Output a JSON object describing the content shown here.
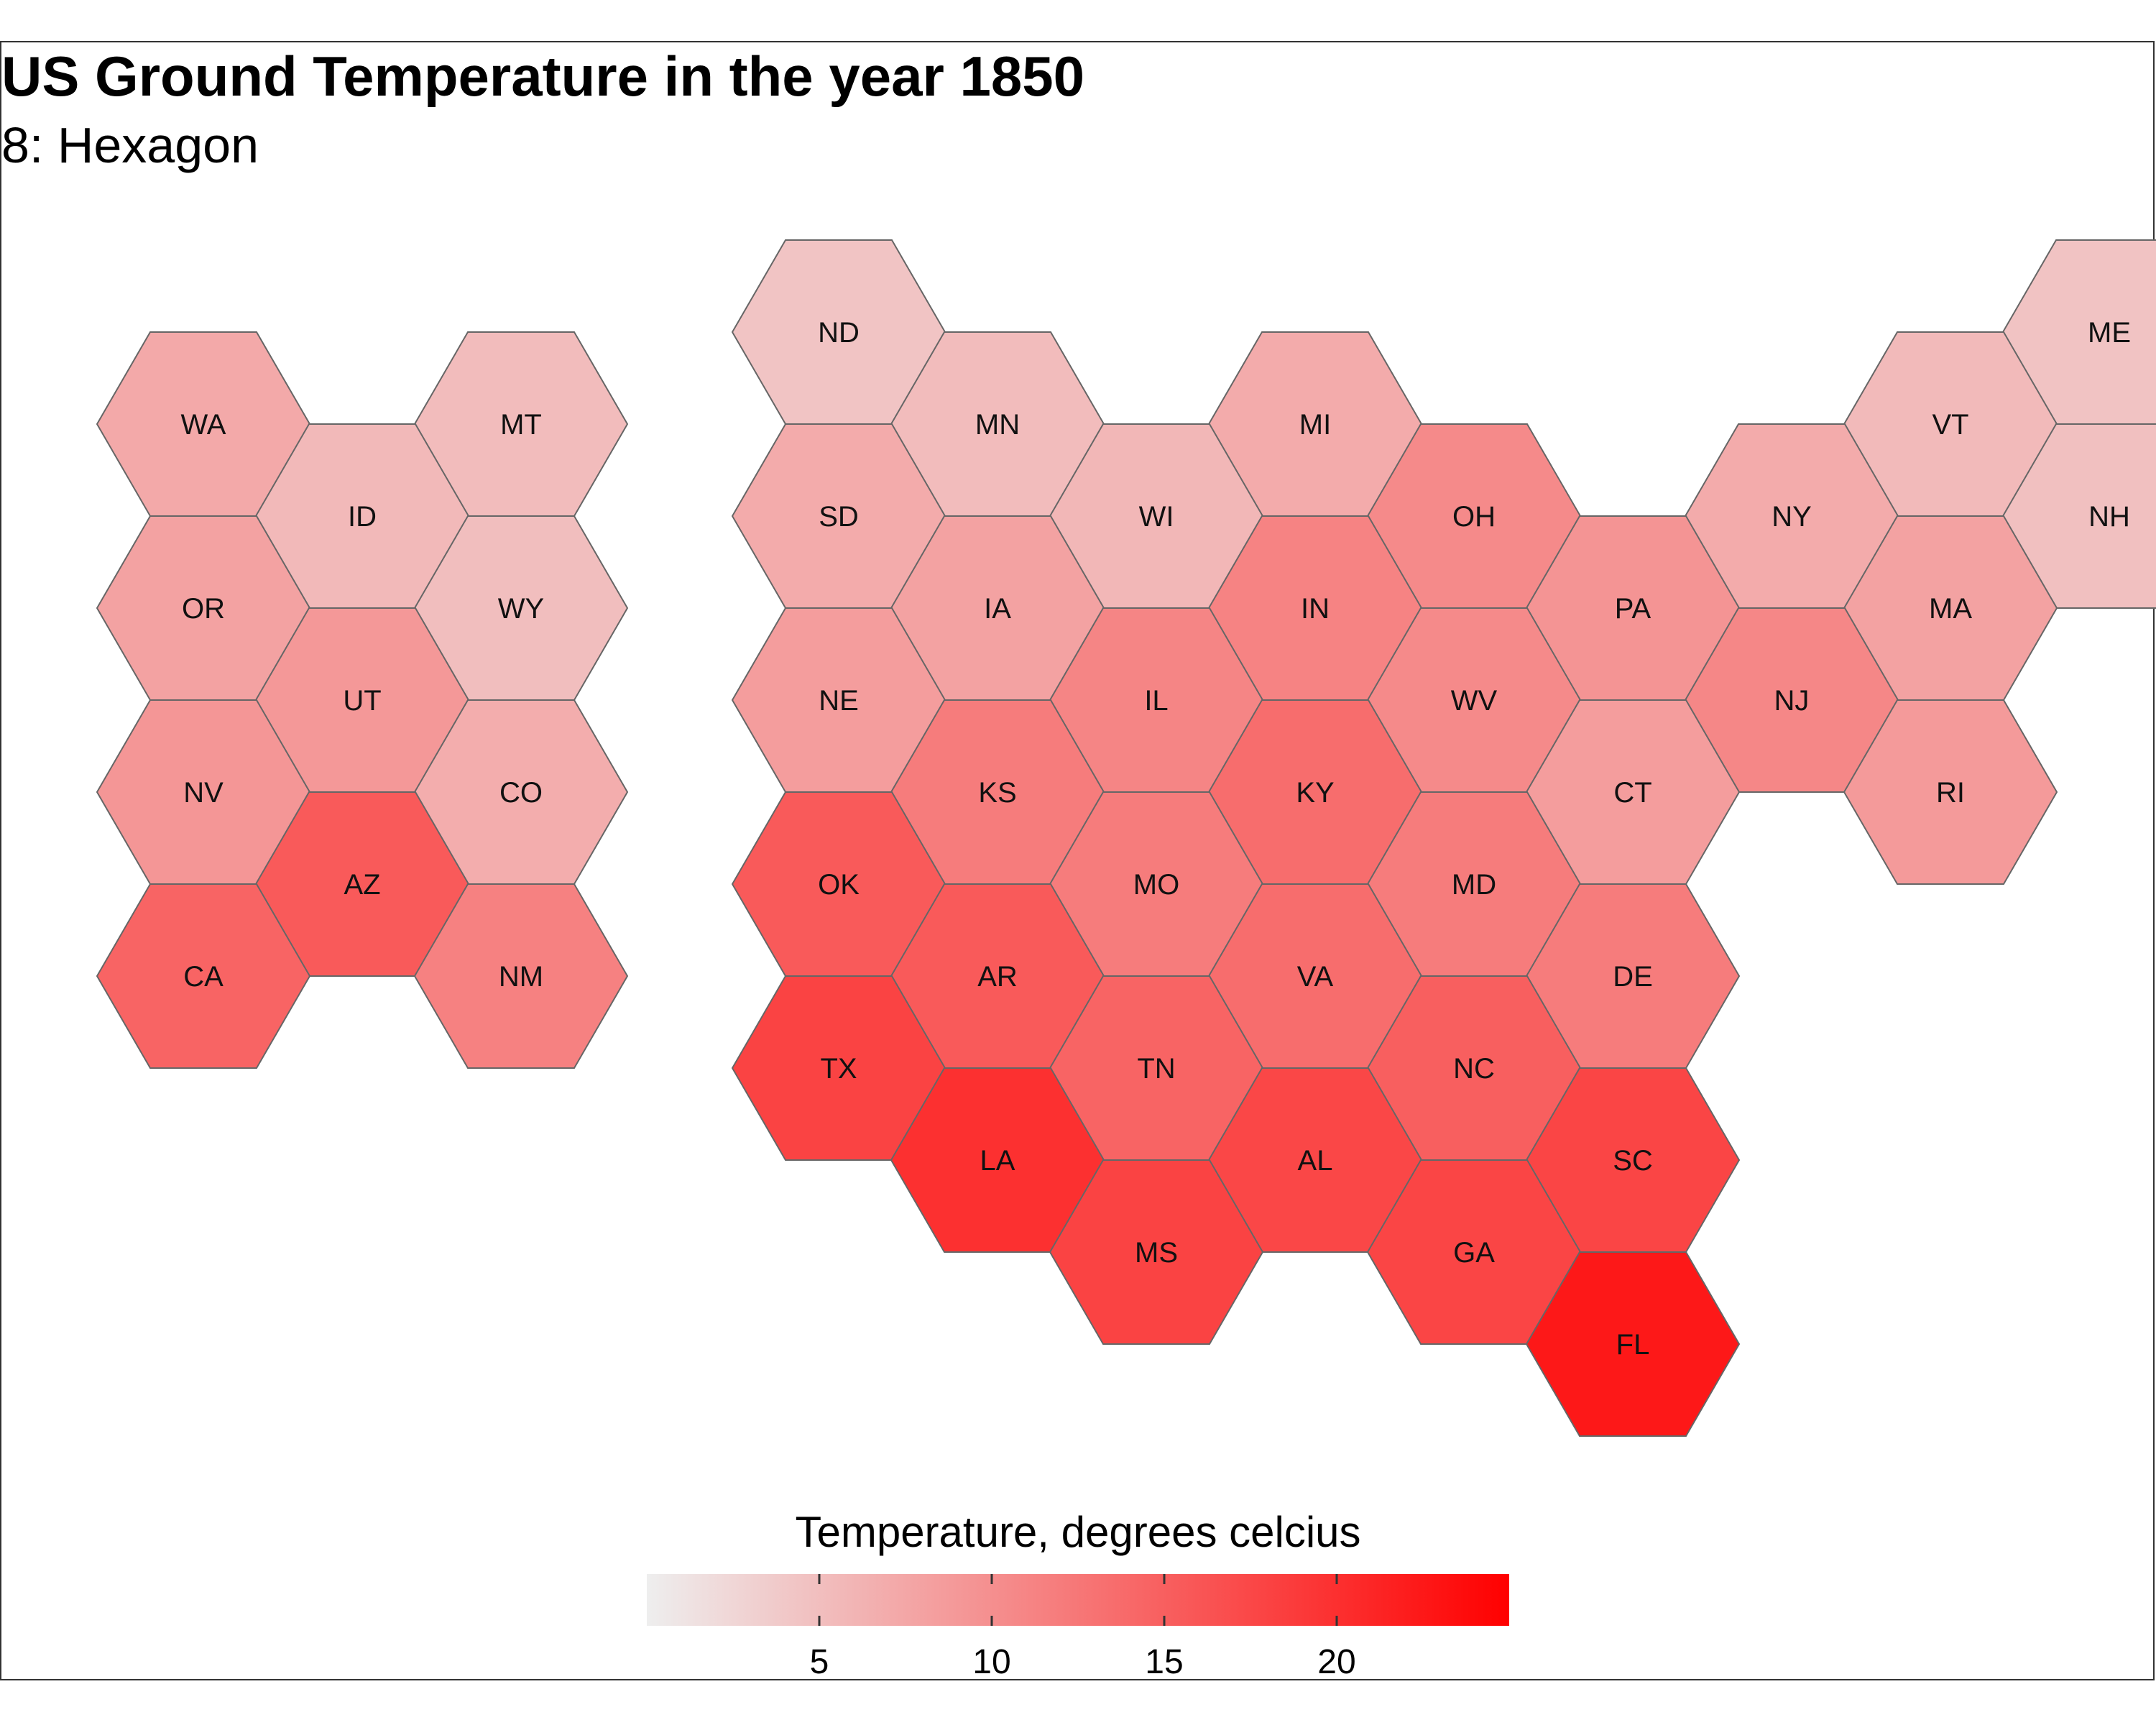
{
  "chart_data": {
    "type": "heatmap",
    "title": "US Ground Temperature in the year 1850",
    "subtitle": "8: Hexagon",
    "legend": {
      "title": "Temperature, degrees celcius",
      "ticks": [
        5,
        10,
        15,
        20
      ],
      "range": [
        0,
        25
      ],
      "placement": "bottom",
      "color_low": "#eeeeee",
      "color_high": "#ff0000"
    },
    "grid": false,
    "states": [
      {
        "abbr": "ME",
        "col": 12,
        "row": 0,
        "temp": 4.5
      },
      {
        "abbr": "ND",
        "col": 4,
        "row": 0,
        "temp": 4.4
      },
      {
        "abbr": "WA",
        "col": 0,
        "row": 1,
        "temp": 7.2
      },
      {
        "abbr": "MT",
        "col": 2,
        "row": 1,
        "temp": 5.3
      },
      {
        "abbr": "MN",
        "col": 5,
        "row": 1,
        "temp": 5.2
      },
      {
        "abbr": "MI",
        "col": 7,
        "row": 1,
        "temp": 7.0
      },
      {
        "abbr": "VT",
        "col": 11,
        "row": 1,
        "temp": 5.5
      },
      {
        "abbr": "ID",
        "col": 1,
        "row": 2,
        "temp": 5.6
      },
      {
        "abbr": "SD",
        "col": 4,
        "row": 2,
        "temp": 7.0
      },
      {
        "abbr": "WI",
        "col": 6,
        "row": 2,
        "temp": 5.8
      },
      {
        "abbr": "OH",
        "col": 8,
        "row": 2,
        "temp": 10.5
      },
      {
        "abbr": "NY",
        "col": 10,
        "row": 2,
        "temp": 7.0
      },
      {
        "abbr": "NH",
        "col": 12,
        "row": 2,
        "temp": 4.8
      },
      {
        "abbr": "OR",
        "col": 0,
        "row": 3,
        "temp": 8.0
      },
      {
        "abbr": "WY",
        "col": 2,
        "row": 3,
        "temp": 5.0
      },
      {
        "abbr": "IA",
        "col": 5,
        "row": 3,
        "temp": 8.0
      },
      {
        "abbr": "IN",
        "col": 7,
        "row": 3,
        "temp": 11.2
      },
      {
        "abbr": "PA",
        "col": 9,
        "row": 3,
        "temp": 9.5
      },
      {
        "abbr": "MA",
        "col": 11,
        "row": 3,
        "temp": 8.0
      },
      {
        "abbr": "UT",
        "col": 1,
        "row": 4,
        "temp": 9.0
      },
      {
        "abbr": "NE",
        "col": 4,
        "row": 4,
        "temp": 8.5
      },
      {
        "abbr": "IL",
        "col": 6,
        "row": 4,
        "temp": 11.0
      },
      {
        "abbr": "WV",
        "col": 8,
        "row": 4,
        "temp": 10.5
      },
      {
        "abbr": "NJ",
        "col": 10,
        "row": 4,
        "temp": 10.8
      },
      {
        "abbr": "NV",
        "col": 0,
        "row": 5,
        "temp": 9.2
      },
      {
        "abbr": "CO",
        "col": 2,
        "row": 5,
        "temp": 6.8
      },
      {
        "abbr": "KS",
        "col": 5,
        "row": 5,
        "temp": 12.0
      },
      {
        "abbr": "KY",
        "col": 7,
        "row": 5,
        "temp": 13.5
      },
      {
        "abbr": "CT",
        "col": 9,
        "row": 5,
        "temp": 8.5
      },
      {
        "abbr": "RI",
        "col": 11,
        "row": 5,
        "temp": 8.8
      },
      {
        "abbr": "AZ",
        "col": 1,
        "row": 6,
        "temp": 15.5
      },
      {
        "abbr": "OK",
        "col": 4,
        "row": 6,
        "temp": 15.5
      },
      {
        "abbr": "MO",
        "col": 6,
        "row": 6,
        "temp": 12.0
      },
      {
        "abbr": "MD",
        "col": 8,
        "row": 6,
        "temp": 12.0
      },
      {
        "abbr": "CA",
        "col": 0,
        "row": 7,
        "temp": 14.5
      },
      {
        "abbr": "NM",
        "col": 2,
        "row": 7,
        "temp": 11.5
      },
      {
        "abbr": "AR",
        "col": 5,
        "row": 7,
        "temp": 15.5
      },
      {
        "abbr": "VA",
        "col": 7,
        "row": 7,
        "temp": 13.5
      },
      {
        "abbr": "DE",
        "col": 9,
        "row": 7,
        "temp": 12.0
      },
      {
        "abbr": "TX",
        "col": 4,
        "row": 8,
        "temp": 18.0
      },
      {
        "abbr": "TN",
        "col": 6,
        "row": 8,
        "temp": 14.5
      },
      {
        "abbr": "NC",
        "col": 8,
        "row": 8,
        "temp": 15.0
      },
      {
        "abbr": "LA",
        "col": 5,
        "row": 9,
        "temp": 20.0
      },
      {
        "abbr": "AL",
        "col": 7,
        "row": 9,
        "temp": 17.5
      },
      {
        "abbr": "SC",
        "col": 9,
        "row": 9,
        "temp": 17.8
      },
      {
        "abbr": "MS",
        "col": 6,
        "row": 10,
        "temp": 18.0
      },
      {
        "abbr": "GA",
        "col": 8,
        "row": 10,
        "temp": 17.8
      },
      {
        "abbr": "FL",
        "col": 9,
        "row": 11,
        "temp": 22.5
      }
    ]
  }
}
